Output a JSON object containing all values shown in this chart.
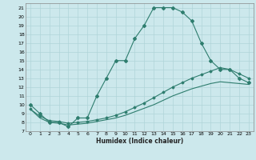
{
  "xlabel": "Humidex (Indice chaleur)",
  "bg_color": "#cce8ec",
  "line_color": "#2e7d6e",
  "grid_color": "#b0d4d8",
  "xlim": [
    -0.5,
    23.5
  ],
  "ylim": [
    7,
    21.5
  ],
  "xticks": [
    0,
    1,
    2,
    3,
    4,
    5,
    6,
    7,
    8,
    9,
    10,
    11,
    12,
    13,
    14,
    15,
    16,
    17,
    18,
    19,
    20,
    21,
    22,
    23
  ],
  "yticks": [
    7,
    8,
    9,
    10,
    11,
    12,
    13,
    14,
    15,
    16,
    17,
    18,
    19,
    20,
    21
  ],
  "curve1_x": [
    0,
    1,
    2,
    3,
    4,
    5,
    6,
    7,
    8,
    9,
    10,
    11,
    12,
    13,
    14,
    15,
    16,
    17,
    18,
    19,
    20,
    21,
    22,
    23
  ],
  "curve1_y": [
    10,
    9,
    8,
    8,
    7.5,
    8.5,
    8.5,
    11,
    13,
    15,
    15,
    17.5,
    19,
    21,
    21,
    21,
    20.5,
    19.5,
    17,
    15,
    14,
    14,
    13,
    12.5
  ],
  "curve2_x": [
    0,
    1,
    2,
    3,
    4,
    5,
    6,
    7,
    8,
    9,
    10,
    11,
    12,
    13,
    14,
    15,
    16,
    17,
    18,
    19,
    20,
    21,
    22,
    23
  ],
  "curve2_y": [
    9.5,
    8.7,
    8.2,
    8.1,
    7.9,
    8.0,
    8.1,
    8.3,
    8.5,
    8.8,
    9.2,
    9.7,
    10.2,
    10.8,
    11.4,
    12.0,
    12.5,
    13.0,
    13.4,
    13.8,
    14.2,
    14.0,
    13.5,
    13.0
  ],
  "curve3_x": [
    0,
    1,
    2,
    3,
    4,
    5,
    6,
    7,
    8,
    9,
    10,
    11,
    12,
    13,
    14,
    15,
    16,
    17,
    18,
    19,
    20,
    21,
    22,
    23
  ],
  "curve3_y": [
    9.5,
    8.5,
    8.0,
    7.9,
    7.7,
    7.8,
    7.9,
    8.1,
    8.3,
    8.5,
    8.8,
    9.2,
    9.6,
    10.0,
    10.5,
    11.0,
    11.4,
    11.8,
    12.1,
    12.4,
    12.6,
    12.5,
    12.4,
    12.3
  ]
}
